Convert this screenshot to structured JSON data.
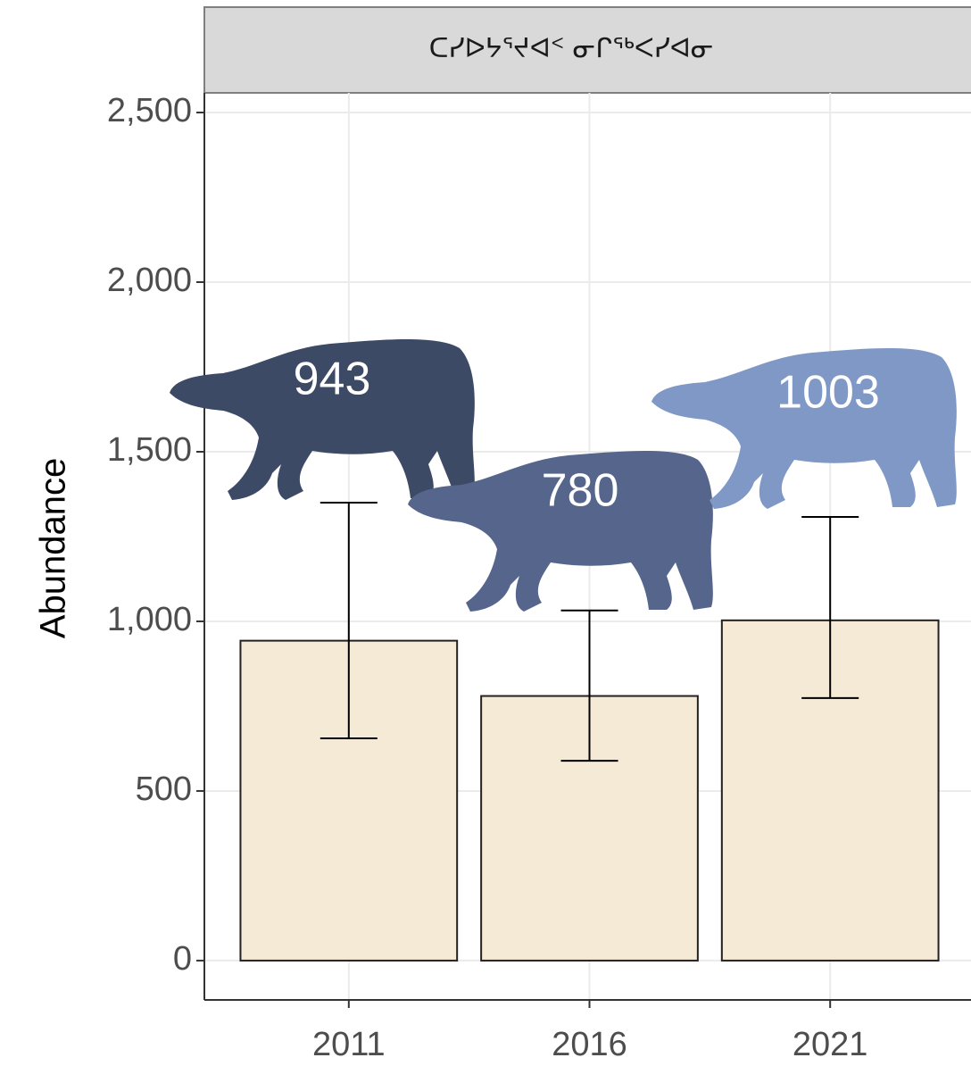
{
  "chart_data": {
    "type": "bar",
    "strip_title": "ᑕᓯᐅᔭᕐᔪᐊᑉ ᓂᒋᖅᐸᓯᐊᓂ",
    "y_label": "Abundance",
    "categories": [
      "2011",
      "2016",
      "2021"
    ],
    "values": [
      943,
      780,
      1003
    ],
    "lower": [
      655,
      589,
      774
    ],
    "upper": [
      1350,
      1032,
      1308
    ],
    "color": "#f5ead6",
    "annotation_colors": [
      "#3d4a66",
      "#55658c",
      "#7f98c5"
    ],
    "ylim": [
      -116,
      2558
    ],
    "yticks": [
      0,
      500,
      {
        "value": 1000,
        "label": "1,000"
      },
      {
        "value": 1500,
        "label": "1,500"
      },
      {
        "value": 2000,
        "label": "2,000"
      },
      {
        "value": 2500,
        "label": "2,500"
      }
    ],
    "grid": true
  }
}
